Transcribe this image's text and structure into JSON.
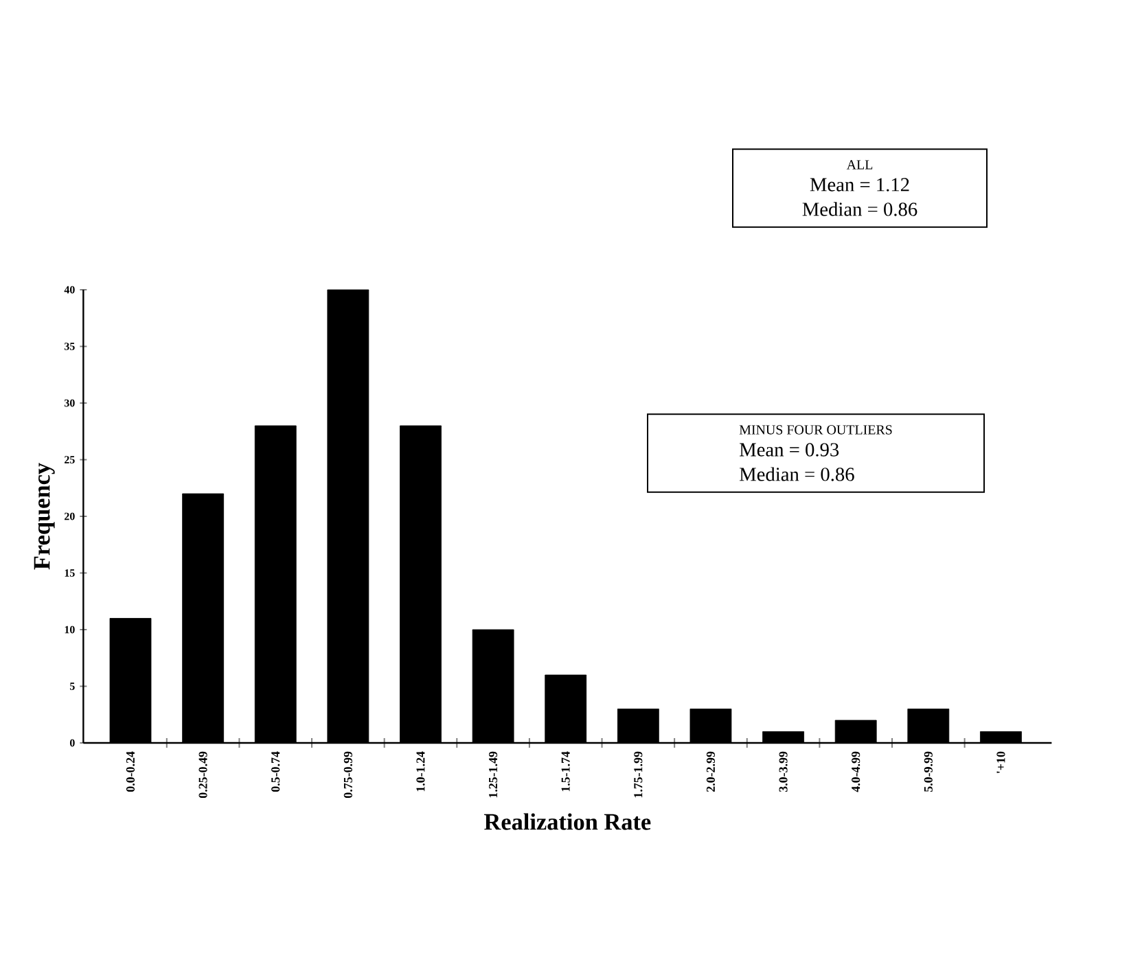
{
  "chart_data": {
    "type": "bar",
    "xlabel": "Realization Rate",
    "ylabel": "Frequency",
    "categories": [
      "0.0-0.24",
      "0.25-0.49",
      "0.5-0.74",
      "0.75-0.99",
      "1.0-1.24",
      "1.25-1.49",
      "1.5-1.74",
      "1.75-1.99",
      "2.0-2.99",
      "3.0-3.99",
      "4.0-4.99",
      "5.0-9.99",
      "'+10"
    ],
    "values": [
      11,
      22,
      28,
      40,
      28,
      10,
      6,
      3,
      3,
      1,
      2,
      3,
      1
    ],
    "color": "#000000",
    "ylim": [
      0,
      40
    ],
    "yticks": [
      0,
      5,
      10,
      15,
      20,
      25,
      30,
      35,
      40
    ],
    "grid": false,
    "annotations": [
      "ALL",
      "Mean = 1.12",
      "Median = 0.86",
      "MINUS FOUR OUTLIERS",
      "Mean = 0.93",
      "Median = 0.86"
    ]
  }
}
